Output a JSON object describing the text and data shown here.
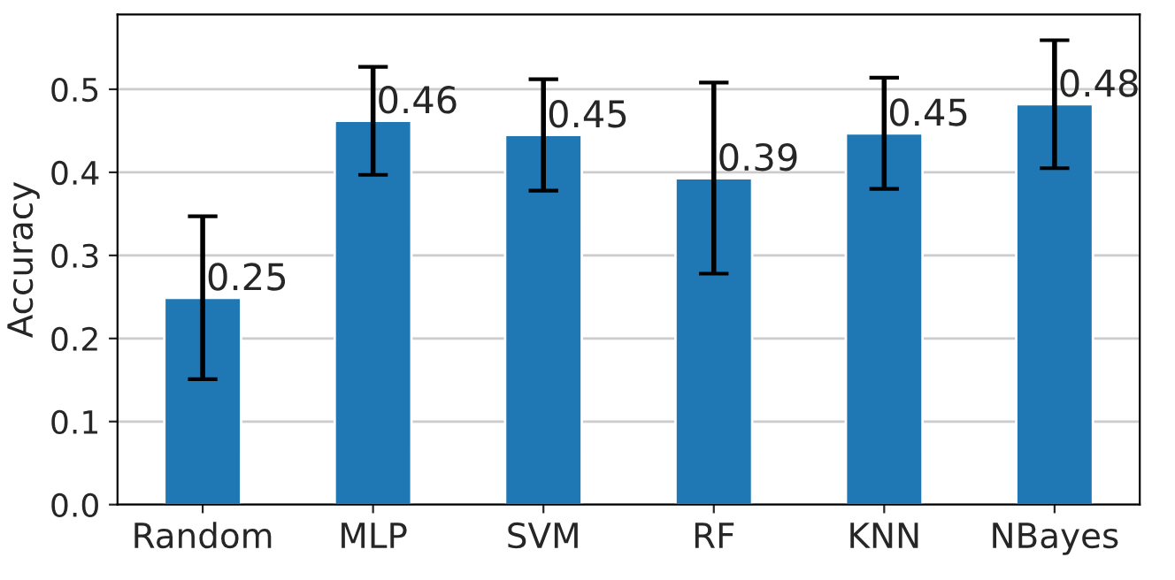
{
  "chart_data": {
    "type": "bar",
    "ylabel": "Accuracy",
    "categories": [
      "Random",
      "MLP",
      "SVM",
      "RF",
      "KNN",
      "NBayes"
    ],
    "values": [
      0.249,
      0.462,
      0.445,
      0.393,
      0.447,
      0.482
    ],
    "errors": [
      0.098,
      0.065,
      0.067,
      0.115,
      0.067,
      0.077
    ],
    "value_labels": [
      "0.25",
      "0.46",
      "0.45",
      "0.39",
      "0.45",
      "0.48"
    ],
    "color": "#1f77b4",
    "ylim": [
      0,
      0.59
    ],
    "yticks": [
      {
        "value": 0,
        "label": "0.0"
      },
      {
        "value": 0.1,
        "label": "0.1"
      },
      {
        "value": 0.2,
        "label": "0.2"
      },
      {
        "value": 0.3,
        "label": "0.3"
      },
      {
        "value": 0.4,
        "label": "0.4"
      },
      {
        "value": 0.5,
        "label": "0.5"
      }
    ],
    "grid": "y"
  }
}
